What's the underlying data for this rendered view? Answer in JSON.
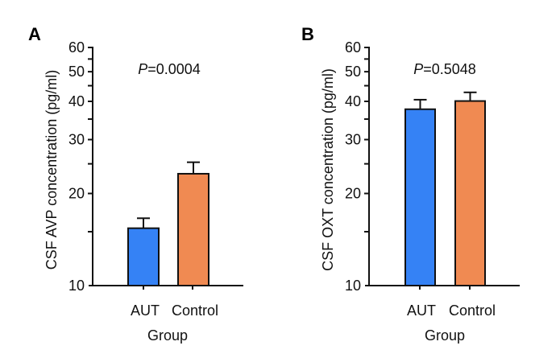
{
  "chart_data": [
    {
      "type": "bar",
      "panel": "A",
      "title": "",
      "annotation_italic": "P",
      "annotation_rest": "=0.0004",
      "ylabel": "CSF AVP concentration (pg/ml)",
      "xlabel": "Group",
      "yscale": "log",
      "ylim": [
        10,
        60
      ],
      "yticks_major": [
        10,
        20,
        30,
        40,
        50,
        60
      ],
      "yticks_minor": [
        15,
        25,
        35,
        45,
        55
      ],
      "categories": [
        "AUT",
        "Control"
      ],
      "values": [
        15.4,
        23.2
      ],
      "error_upper": [
        16.6,
        25.3
      ],
      "colors": [
        "#3582F5",
        "#F08A52"
      ],
      "grid": false
    },
    {
      "type": "bar",
      "panel": "B",
      "title": "",
      "annotation_italic": "P",
      "annotation_rest": "=0.5048",
      "ylabel": "CSF OXT concentration (pg/ml)",
      "xlabel": "Group",
      "yscale": "log",
      "ylim": [
        10,
        60
      ],
      "yticks_major": [
        10,
        20,
        30,
        40,
        50,
        60
      ],
      "yticks_minor": [
        15,
        25,
        35,
        45,
        55
      ],
      "categories": [
        "AUT",
        "Control"
      ],
      "values": [
        37.7,
        40.1
      ],
      "error_upper": [
        40.5,
        42.8
      ],
      "colors": [
        "#3582F5",
        "#F08A52"
      ],
      "grid": false
    }
  ]
}
